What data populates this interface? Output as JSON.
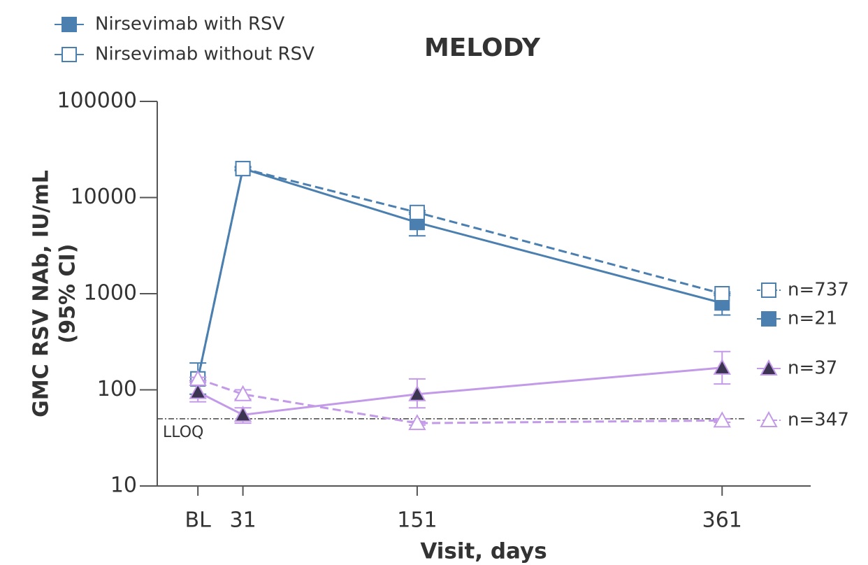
{
  "chart_data": {
    "type": "line",
    "title": "MELODY",
    "xlabel": "Visit, days",
    "ylabel": [
      "GMC RSV NAb, IU/mL",
      "(95% CI)"
    ],
    "x": [
      0,
      31,
      151,
      361
    ],
    "xlim": [
      -28,
      422
    ],
    "xticks": [
      {
        "value": 0,
        "label": "BL"
      },
      31,
      151,
      361
    ],
    "ylim": [
      10,
      100000
    ],
    "yticks": [
      10,
      100,
      1000,
      10000,
      100000
    ],
    "log_y": true,
    "reference_line": {
      "value": 50,
      "label": "LLOQ"
    },
    "series": [
      {
        "name": "Nirsevimab with RSV",
        "end_label": "n=21",
        "color": "#4a7fb0",
        "marker": "square",
        "filled": true,
        "dashed": false,
        "values": [
          130,
          20000,
          5500,
          800
        ],
        "ci_low": [
          90,
          19000,
          4000,
          600
        ],
        "ci_high": [
          190,
          21000,
          7000,
          1000
        ]
      },
      {
        "name": "Nirsevimab without RSV",
        "end_label": "n=737",
        "color": "#4a7fb0",
        "marker": "square",
        "filled": false,
        "dashed": true,
        "values": [
          130,
          20000,
          7000,
          1000
        ],
        "ci_low": [
          125,
          19500,
          6700,
          960
        ],
        "ci_high": [
          135,
          20500,
          7300,
          1040
        ]
      },
      {
        "end_label": "n=37",
        "color": "#c39ae8",
        "marker": "triangle",
        "filled": true,
        "dashed": false,
        "values": [
          95,
          55,
          90,
          170
        ],
        "ci_low": [
          75,
          45,
          65,
          115
        ],
        "ci_high": [
          120,
          65,
          130,
          250
        ]
      },
      {
        "end_label": "n=347",
        "color": "#c39ae8",
        "marker": "triangle",
        "filled": false,
        "dashed": true,
        "values": [
          130,
          90,
          45,
          48
        ],
        "ci_low": [
          125,
          80,
          43,
          46
        ],
        "ci_high": [
          135,
          100,
          47,
          50
        ]
      }
    ]
  }
}
